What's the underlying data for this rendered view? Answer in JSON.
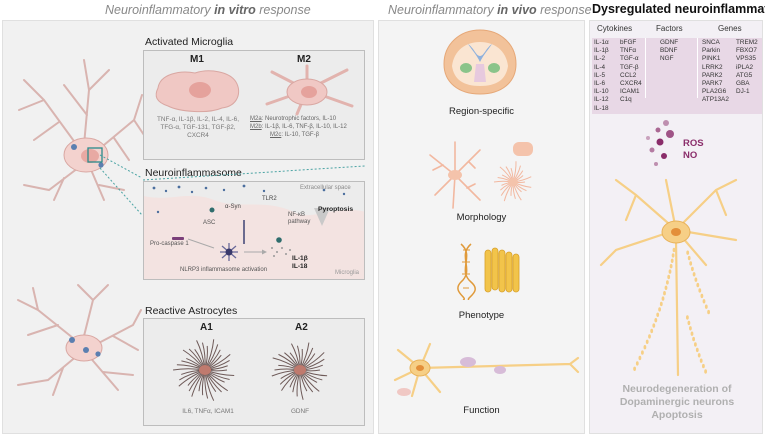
{
  "headers": {
    "in_vitro": {
      "prefix": "Neuroinflammatory ",
      "emph": "in vitro",
      "suffix": " response"
    },
    "in_vivo": {
      "prefix": "Neuroinflammatory ",
      "emph": "in vivo",
      "suffix": " response"
    },
    "dysregulated": "Dysregulated neuroinflammation"
  },
  "microglia": {
    "title": "Activated Microglia",
    "m1": {
      "label": "M1",
      "text": "TNF-α, IL-1β, IL-2, IL-4, IL-6, TFG-α, TGF-131, TGF-β2, CXCR4"
    },
    "m2": {
      "label": "M2",
      "m2a": {
        "tag": "M2a",
        "text": ": Neurotrophic factors, IL-10"
      },
      "m2b": {
        "tag": "M2b",
        "text": ": IL-1β, IL-6, TNF-β, IL-10, IL-12"
      },
      "m2c": {
        "tag": "M2c",
        "text": ": IL-10, TGF-β"
      }
    }
  },
  "inflammasome": {
    "title": "Neuroinflammasome",
    "extracellular": "Extracellular space",
    "syn": "α-Syn",
    "tlr2": "TLR2",
    "nfkb": "NF-κB pathway",
    "pyroptosis": "Pyroptosis",
    "asc": "ASC",
    "procaspase": "Pro-caspase 1",
    "nlrp3": "NLRP3 inflammasome activation",
    "il1b": "IL-1β",
    "il18": "IL-18",
    "microglia": "Microglia"
  },
  "astrocytes": {
    "title": "Reactive Astrocytes",
    "a1": {
      "label": "A1",
      "text": "IL6, TNFα, ICAM1"
    },
    "a2": {
      "label": "A2",
      "text": "GDNF"
    }
  },
  "in_vivo": {
    "labels": [
      "Region-specific",
      "Morphology",
      "Phenotype",
      "Function"
    ]
  },
  "dysreg": {
    "columns": [
      {
        "head": "Cytokines",
        "items": []
      },
      {
        "head": "Factors",
        "items": [
          "GDNF",
          "BDNF",
          "NGF"
        ]
      },
      {
        "head": "Genes",
        "items": []
      }
    ],
    "cytokines_a": [
      "IL-1α",
      "IL-1β",
      "IL-2",
      "IL-4",
      "IL-5",
      "IL-6",
      "IL-10",
      "IL-12",
      "IL-18"
    ],
    "cytokines_b": [
      "bFGF",
      "TNFα",
      "TGF-α",
      "TGF-β",
      "CCL2",
      "CXCR4",
      "ICAM1",
      "C1q"
    ],
    "genes_a": [
      "SNCA",
      "Parkin",
      "PINK1",
      "LRRK2",
      "PARK2",
      "PARK7",
      "PLA2G6",
      "ATP13A2"
    ],
    "genes_b": [
      "TREM2",
      "FBXO7",
      "VPS35",
      "iPLA2",
      "ATG5",
      "GBA",
      "DJ-1"
    ],
    "ros": "ROS",
    "no": "NO",
    "bottom": [
      "Neurodegeneration of",
      "Dopaminergic neurons",
      "Apoptosis"
    ]
  },
  "colors": {
    "cell_pink": "#f0c8c4",
    "cell_stroke": "#d9a7a2",
    "astro_dark": "#6e5a58",
    "neuron_orange": "#f6cf86",
    "ros_purple": "#8a2d6a",
    "table_bg": "#e8d8e6"
  }
}
